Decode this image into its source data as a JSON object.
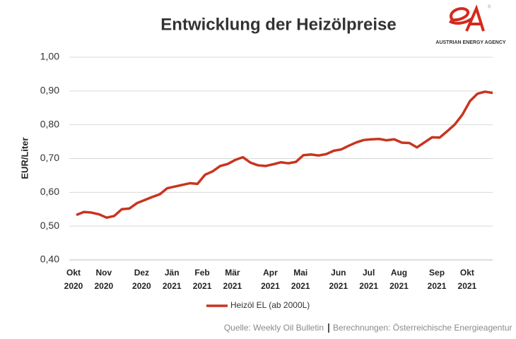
{
  "chart_data": {
    "type": "line",
    "title": "Entwicklung der Heizölpreise",
    "y_label": "EUR/Liter",
    "categories": [
      "Okt 2020",
      null,
      null,
      null,
      "Nov 2020",
      null,
      null,
      null,
      null,
      "Dez 2020",
      null,
      null,
      null,
      "Jän 2021",
      null,
      null,
      null,
      "Feb 2021",
      null,
      null,
      null,
      "Mär 2021",
      null,
      null,
      null,
      null,
      "Apr 2021",
      null,
      null,
      null,
      "Mai 2021",
      null,
      null,
      null,
      null,
      "Jun 2021",
      null,
      null,
      null,
      "Jul 2021",
      null,
      null,
      null,
      "Aug 2021",
      null,
      null,
      null,
      null,
      "Sep 2021",
      null,
      null,
      null,
      "Okt 2021",
      null,
      null,
      null
    ],
    "series": [
      {
        "name": "Heizöl EL (ab 2000L)",
        "color": "#c8341f",
        "values": [
          0.533,
          0.542,
          0.54,
          0.535,
          0.525,
          0.53,
          0.55,
          0.552,
          0.568,
          0.577,
          0.586,
          0.594,
          0.612,
          0.617,
          0.622,
          0.627,
          0.625,
          0.652,
          0.662,
          0.678,
          0.684,
          0.696,
          0.704,
          0.688,
          0.68,
          0.678,
          0.683,
          0.689,
          0.686,
          0.69,
          0.71,
          0.712,
          0.709,
          0.713,
          0.723,
          0.727,
          0.738,
          0.748,
          0.755,
          0.757,
          0.758,
          0.754,
          0.757,
          0.747,
          0.746,
          0.733,
          0.748,
          0.763,
          0.762,
          0.781,
          0.801,
          0.83,
          0.87,
          0.892,
          0.898,
          0.894
        ]
      }
    ],
    "ylim": [
      0.4,
      1.0
    ],
    "yticks": [
      {
        "value": 0.4,
        "label": "0,40"
      },
      {
        "value": 0.5,
        "label": "0,50"
      },
      {
        "value": 0.6,
        "label": "0,60"
      },
      {
        "value": 0.7,
        "label": "0,70"
      },
      {
        "value": 0.8,
        "label": "0,80"
      },
      {
        "value": 0.9,
        "label": "0,90"
      },
      {
        "value": 1.0,
        "label": "1,00"
      }
    ],
    "grid": true,
    "legend": "bottom",
    "source": "Quelle: Weekly Oil Bulletin",
    "source_2": "Berechnungen: Österreichische Energieagentur"
  },
  "logo_text": "AUSTRIAN ENERGY AGENCY"
}
